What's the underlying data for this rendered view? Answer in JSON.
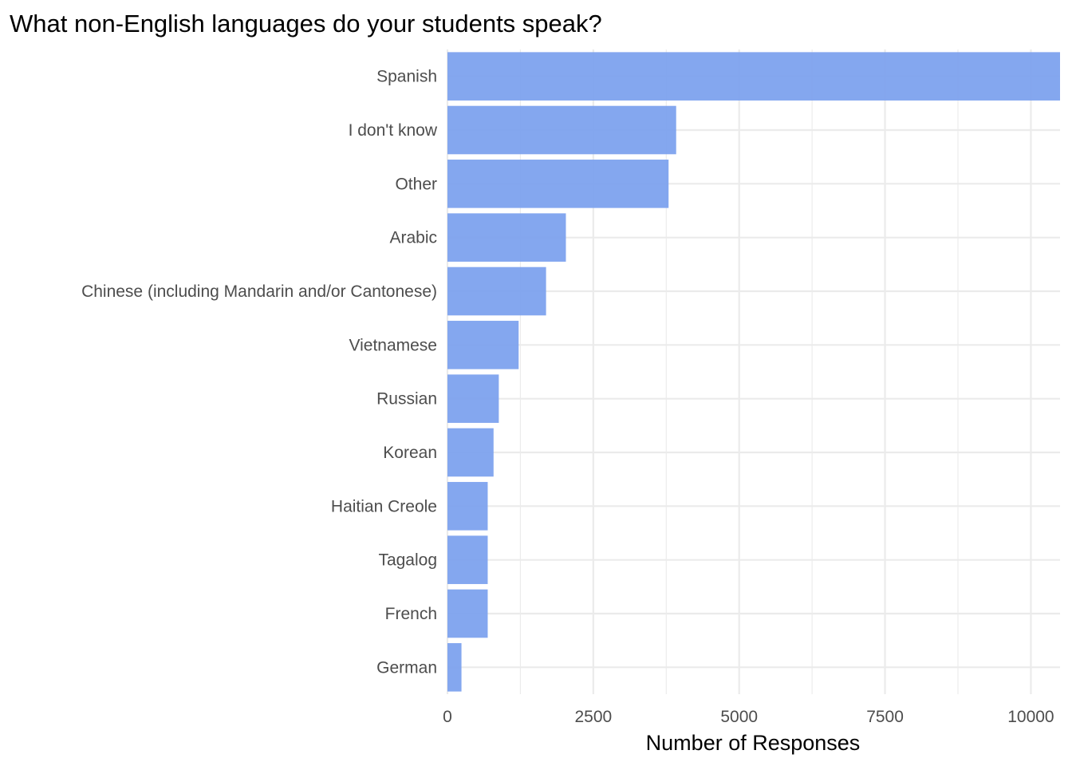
{
  "chart_data": {
    "type": "bar",
    "orientation": "horizontal",
    "title": "What non-English languages do your students speak?",
    "xlabel": "Number of Responses",
    "ylabel": "",
    "categories": [
      "Spanish",
      "I don't know",
      "Other",
      "Arabic",
      "Chinese (including Mandarin and/or Cantonese)",
      "Vietnamese",
      "Russian",
      "Korean",
      "Haitian Creole",
      "Tagalog",
      "French",
      "German"
    ],
    "values": [
      10500,
      3920,
      3790,
      2030,
      1690,
      1220,
      880,
      790,
      690,
      690,
      690,
      240
    ],
    "xlim": [
      0,
      10500
    ],
    "xticks": [
      0,
      2500,
      5000,
      7500,
      10000
    ],
    "xtick_labels": [
      "0",
      "2500",
      "5000",
      "7500",
      "10000"
    ],
    "grid": true,
    "bar_color": "#7aa0ee",
    "grid_color": "#ebebeb",
    "label_color": "#4d4d4d"
  }
}
